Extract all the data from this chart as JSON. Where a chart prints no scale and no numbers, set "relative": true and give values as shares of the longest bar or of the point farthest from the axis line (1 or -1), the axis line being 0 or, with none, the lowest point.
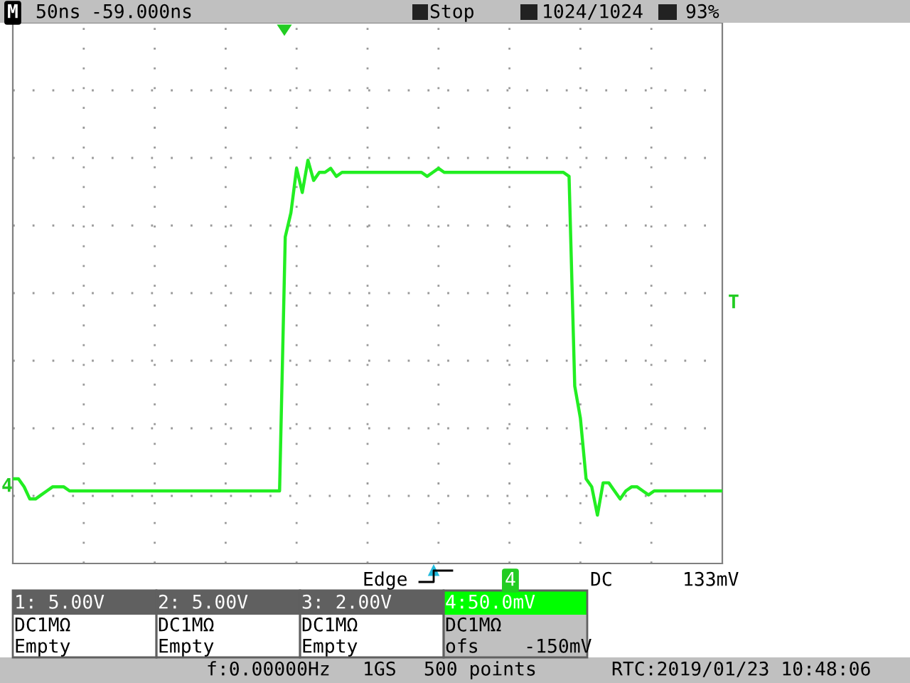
{
  "chart_data": {
    "type": "line",
    "relative": true,
    "grid": true,
    "color": "#22ee22",
    "categories": [
      null,
      null,
      null,
      null,
      null,
      null,
      null,
      null,
      null,
      null,
      null,
      null,
      null,
      null,
      null,
      null,
      null,
      null,
      null,
      null,
      null,
      null,
      null,
      null,
      null,
      null,
      null,
      null,
      null,
      null,
      null,
      null,
      null,
      null,
      null,
      null,
      null,
      null,
      null,
      null,
      null,
      null,
      null,
      null,
      null,
      null,
      null,
      null,
      null,
      null,
      null,
      null,
      null,
      null,
      null,
      null,
      null,
      null,
      null,
      null,
      null,
      null,
      null,
      null,
      null,
      null,
      null,
      null,
      null,
      null,
      null,
      null,
      null,
      null,
      null,
      null,
      null,
      null,
      null,
      null,
      null,
      null,
      null,
      null,
      null,
      null,
      null,
      null,
      null,
      null,
      null,
      null,
      null,
      null,
      null,
      null,
      null,
      null,
      null,
      null,
      null,
      null,
      null,
      null,
      null,
      null,
      null,
      null,
      null,
      null,
      null,
      null,
      null,
      null,
      null,
      null,
      null,
      null,
      null,
      null,
      null,
      null,
      null,
      null,
      null,
      null
    ],
    "values": [
      0.21,
      0.21,
      0.19,
      0.16,
      0.16,
      0.17,
      0.18,
      0.19,
      0.19,
      0.19,
      0.18,
      0.18,
      0.18,
      0.18,
      0.18,
      0.18,
      0.18,
      0.18,
      0.18,
      0.18,
      0.18,
      0.18,
      0.18,
      0.18,
      0.18,
      0.18,
      0.18,
      0.18,
      0.18,
      0.18,
      0.18,
      0.18,
      0.18,
      0.18,
      0.18,
      0.18,
      0.18,
      0.18,
      0.18,
      0.18,
      0.18,
      0.18,
      0.18,
      0.18,
      0.18,
      0.18,
      0.18,
      0.18,
      0.81,
      0.87,
      0.98,
      0.92,
      1.0,
      0.95,
      0.97,
      0.97,
      0.98,
      0.96,
      0.97,
      0.97,
      0.97,
      0.97,
      0.97,
      0.97,
      0.97,
      0.97,
      0.97,
      0.97,
      0.97,
      0.97,
      0.97,
      0.97,
      0.97,
      0.96,
      0.97,
      0.98,
      0.97,
      0.97,
      0.97,
      0.97,
      0.97,
      0.97,
      0.97,
      0.97,
      0.97,
      0.97,
      0.97,
      0.97,
      0.97,
      0.97,
      0.97,
      0.97,
      0.97,
      0.97,
      0.97,
      0.97,
      0.97,
      0.97,
      0.96,
      0.44,
      0.36,
      0.21,
      0.19,
      0.12,
      0.2,
      0.2,
      0.18,
      0.16,
      0.18,
      0.19,
      0.19,
      0.18,
      0.17,
      0.18,
      0.18,
      0.18,
      0.18,
      0.18,
      0.18,
      0.18,
      0.18,
      0.18,
      0.18,
      0.18,
      0.18,
      0.18
    ],
    "annotations": [
      "50ns",
      "-59.000ns",
      "Stop",
      "1024/1024",
      "93%",
      "Edge",
      "4",
      "DC",
      "133mV",
      "1: 5.00V",
      "DC1MΩ",
      "Empty",
      "2: 5.00V",
      "DC1MΩ",
      "Empty",
      "3: 2.00V",
      "DC1MΩ",
      "Empty",
      "4:50.0mV",
      "DC1MΩ",
      "ofs    -150mV",
      "f:0.00000Hz",
      "1GS",
      "500 points",
      "RTC:2019/01/23 10:48:06",
      "4",
      "T",
      "M"
    ]
  }
}
